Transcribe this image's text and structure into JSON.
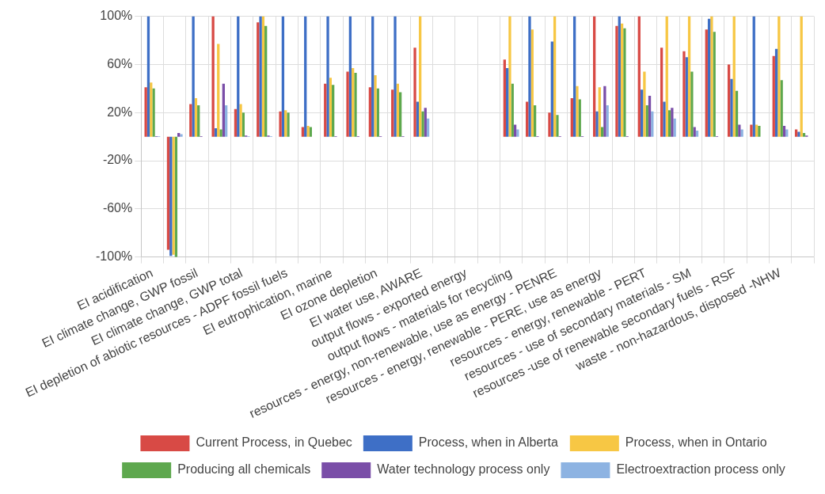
{
  "chart_data": {
    "type": "bar",
    "categories": [
      "EI acidification",
      null,
      "EI climate change, GWP fossil",
      null,
      "EI climate change, GWP total",
      null,
      "EI depletion of abiotic resources - ADPF fossil fuels",
      null,
      "EI eutrophication, marine",
      null,
      "EI ozone depletion",
      null,
      "EI water use, AWARE",
      null,
      "output flows - exported energy",
      null,
      "output flows - materials for recycling",
      null,
      "resources - energy, non-renewable, use as energy - PENRE",
      null,
      "resources - energy, renewable - PERE, use as energy",
      null,
      "resources - energy, renewable - PERT",
      null,
      "resources - use of secondary materials - SM",
      null,
      "resources -use of renewable secondary fuels - RSF",
      null,
      "waste - non-hazardous, disposed -NHW",
      null
    ],
    "series": [
      {
        "name": "Current Process, in Quebec",
        "color": "#d84a45",
        "values": [
          41,
          -94,
          27,
          100,
          23,
          95,
          21,
          8,
          44,
          54,
          41,
          39,
          74,
          null,
          null,
          null,
          64,
          29,
          20,
          32,
          100,
          92,
          100,
          74,
          71,
          89,
          60,
          10,
          67,
          6
        ]
      },
      {
        "name": "Process, when in Alberta",
        "color": "#3e6fc6",
        "values": [
          100,
          -99,
          100,
          7,
          100,
          100,
          100,
          100,
          100,
          100,
          100,
          100,
          29,
          null,
          null,
          null,
          57,
          100,
          79,
          100,
          21,
          100,
          39,
          29,
          66,
          98,
          48,
          100,
          73,
          4
        ]
      },
      {
        "name": "Process, when in Ontario",
        "color": "#f7c744",
        "values": [
          45,
          -98,
          32,
          77,
          27,
          100,
          22,
          9,
          49,
          57,
          51,
          44,
          100,
          null,
          null,
          null,
          100,
          89,
          100,
          42,
          41,
          94,
          54,
          100,
          100,
          100,
          100,
          10,
          100,
          100
        ]
      },
      {
        "name": "Producing all chemicals",
        "color": "#5ea84e",
        "values": [
          40,
          -100,
          26,
          6,
          20,
          92,
          20,
          8,
          43,
          53,
          40,
          37,
          21,
          null,
          null,
          null,
          44,
          26,
          18,
          31,
          8,
          90,
          26,
          22,
          54,
          87,
          38,
          9,
          47,
          3
        ]
      },
      {
        "name": "Water technology process only",
        "color": "#7a4ea8",
        "values": [
          0.5,
          3,
          0.5,
          44,
          1,
          1,
          0,
          0,
          0.5,
          0.5,
          0.5,
          0.5,
          24,
          null,
          null,
          null,
          10,
          0.5,
          0.5,
          0.5,
          42,
          0.5,
          34,
          24,
          8,
          0.5,
          10,
          0,
          9,
          1
        ]
      },
      {
        "name": "Electroextraction process only",
        "color": "#8db3e2",
        "values": [
          0.5,
          2,
          0,
          26,
          0.5,
          0.5,
          0,
          0,
          0,
          0,
          0,
          0,
          15,
          null,
          null,
          null,
          6,
          0,
          0,
          0,
          26,
          0,
          21,
          15,
          5,
          0,
          6,
          0,
          6,
          0
        ]
      }
    ],
    "ylim": [
      -100,
      100
    ],
    "yticks": [
      {
        "value": -100,
        "label": "-100%"
      },
      {
        "value": -60,
        "label": "-60%"
      },
      {
        "value": -20,
        "label": "-20%"
      },
      {
        "value": 20,
        "label": "20%"
      },
      {
        "value": 60,
        "label": "60%"
      },
      {
        "value": 100,
        "label": "100%"
      }
    ],
    "grid": true,
    "legend": "bottom"
  }
}
